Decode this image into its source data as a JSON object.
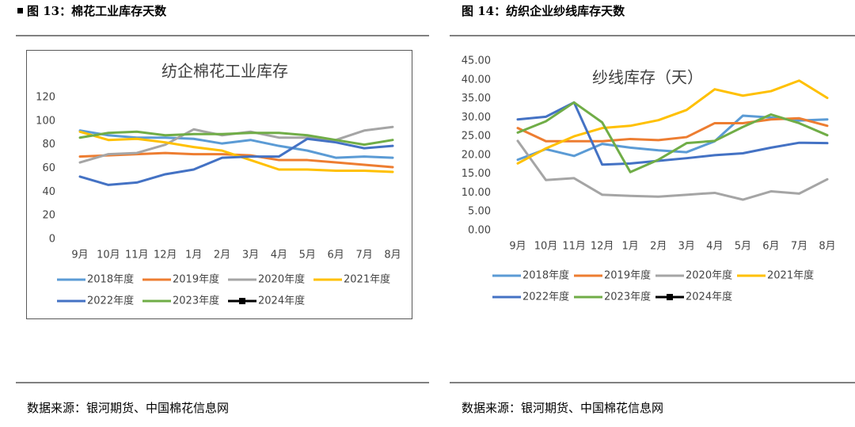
{
  "document": {
    "figures": [
      {
        "caption": "图 13：棉花工业库存天数",
        "source": "数据来源：银河期货、中国棉花信息网"
      },
      {
        "caption": "图 14：纺织企业纱线库存天数",
        "source": "数据来源：银河期货、中国棉花信息网"
      }
    ]
  },
  "chart_data": [
    {
      "type": "line",
      "title": "纺企棉花工业库存",
      "categories": [
        "9月",
        "10月",
        "11月",
        "12月",
        "1月",
        "2月",
        "3月",
        "4月",
        "5月",
        "6月",
        "7月",
        "8月"
      ],
      "ylim": [
        0,
        120
      ],
      "yticks": [
        0,
        20,
        40,
        60,
        80,
        100,
        120
      ],
      "grid": false,
      "series": [
        {
          "name": "2018年度",
          "color": "#5b9bd5",
          "values": [
            92,
            88,
            86,
            86,
            85,
            81,
            84,
            79,
            75,
            69,
            70,
            69
          ]
        },
        {
          "name": "2019年度",
          "color": "#ed7d31",
          "values": [
            70,
            71,
            72,
            73,
            72,
            72,
            71,
            67,
            67,
            65,
            63,
            61
          ]
        },
        {
          "name": "2020年度",
          "color": "#a5a5a5",
          "values": [
            65,
            72,
            73,
            80,
            93,
            88,
            91,
            86,
            86,
            84,
            92,
            95
          ]
        },
        {
          "name": "2021年度",
          "color": "#ffc000",
          "values": [
            91,
            84,
            85,
            82,
            78,
            75,
            67,
            59,
            59,
            58,
            58,
            57
          ]
        },
        {
          "name": "2022年度",
          "color": "#4472c4",
          "values": [
            53,
            46,
            48,
            55,
            59,
            69,
            70,
            70,
            85,
            82,
            77,
            79
          ]
        },
        {
          "name": "2023年度",
          "color": "#70ad47",
          "values": [
            86,
            90,
            91,
            88,
            89,
            89,
            90,
            90,
            88,
            84,
            80,
            84
          ]
        },
        {
          "name": "2024年度",
          "color": "#000000",
          "marker": "square",
          "values": [
            null,
            null,
            null,
            null,
            null,
            null,
            null,
            null,
            null,
            null,
            null,
            null
          ]
        }
      ]
    },
    {
      "type": "line",
      "title": "纱线库存（天）",
      "categories": [
        "9月",
        "10月",
        "11月",
        "12月",
        "1月",
        "2月",
        "3月",
        "4月",
        "5月",
        "6月",
        "7月",
        "8月"
      ],
      "ylim": [
        0,
        45
      ],
      "yticks": [
        {
          "value": 0,
          "label": "0.00"
        },
        {
          "value": 5,
          "label": "5.00"
        },
        {
          "value": 10,
          "label": "10.00"
        },
        {
          "value": 15,
          "label": "15.00"
        },
        {
          "value": 20,
          "label": "20.00"
        },
        {
          "value": 25,
          "label": "25.00"
        },
        {
          "value": 30,
          "label": "30.00"
        },
        {
          "value": 35,
          "label": "35.00"
        },
        {
          "value": 40,
          "label": "40.00"
        },
        {
          "value": 45,
          "label": "45.00"
        }
      ],
      "grid": false,
      "series": [
        {
          "name": "2018年度",
          "color": "#5b9bd5",
          "values": [
            18.8,
            21.6,
            19.8,
            23.0,
            22.0,
            21.3,
            20.8,
            23.7,
            30.5,
            30.0,
            29.2,
            29.5
          ]
        },
        {
          "name": "2019年度",
          "color": "#ed7d31",
          "values": [
            27.2,
            23.7,
            23.7,
            23.7,
            24.3,
            24.0,
            24.8,
            28.5,
            28.5,
            29.5,
            29.8,
            27.8
          ]
        },
        {
          "name": "2020年度",
          "color": "#a5a5a5",
          "values": [
            23.8,
            13.4,
            13.9,
            9.5,
            9.2,
            9.0,
            9.5,
            10.0,
            8.2,
            10.4,
            9.8,
            13.6
          ]
        },
        {
          "name": "2021年度",
          "color": "#ffc000",
          "values": [
            17.8,
            21.8,
            25.0,
            27.2,
            27.8,
            29.3,
            32.0,
            37.5,
            35.8,
            37.0,
            39.8,
            35.2
          ]
        },
        {
          "name": "2022年度",
          "color": "#4472c4",
          "values": [
            29.5,
            30.2,
            34.0,
            17.5,
            17.8,
            18.5,
            19.2,
            20.0,
            20.5,
            22.0,
            23.3,
            23.2
          ]
        },
        {
          "name": "2023年度",
          "color": "#70ad47",
          "values": [
            26.0,
            29.0,
            34.0,
            28.7,
            15.5,
            18.8,
            23.2,
            23.8,
            27.5,
            30.8,
            28.5,
            25.3
          ]
        },
        {
          "name": "2024年度",
          "color": "#000000",
          "marker": "square",
          "values": [
            null,
            null,
            null,
            null,
            null,
            null,
            null,
            null,
            null,
            null,
            null,
            null
          ]
        }
      ]
    }
  ]
}
